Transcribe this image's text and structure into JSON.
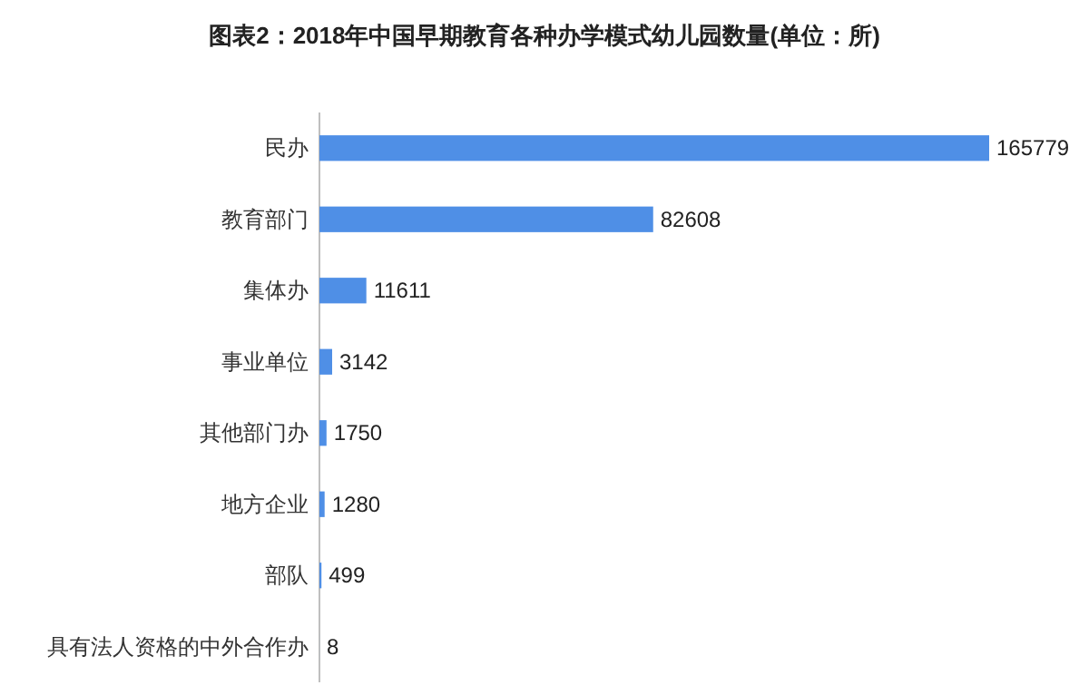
{
  "chart_data": {
    "type": "bar",
    "orientation": "horizontal",
    "title": "图表2：2018年中国早期教育各种办学模式幼儿园数量(单位：所)",
    "categories": [
      "民办",
      "教育部门",
      "集体办",
      "事业单位",
      "其他部门办",
      "地方企业",
      "部队",
      "具有法人资格的中外合作办"
    ],
    "values": [
      165779,
      82608,
      11611,
      3142,
      1750,
      1280,
      499,
      8
    ],
    "color": "#4f8fe6",
    "data_labels": true
  }
}
